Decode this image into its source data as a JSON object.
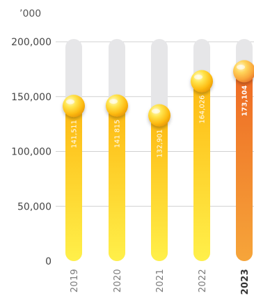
{
  "chart_data": {
    "type": "bar",
    "unit_label": "’000",
    "categories": [
      "2019",
      "2020",
      "2021",
      "2022",
      "2023"
    ],
    "values": [
      141511,
      141815,
      132901,
      164026,
      173104
    ],
    "value_labels": [
      "141,511",
      "141 815",
      "132,901",
      "164,026",
      "173,104"
    ],
    "highlight_category": "2023",
    "ylim": [
      0,
      200000
    ],
    "yticks": [
      0,
      50000,
      100000,
      150000,
      200000
    ],
    "ytick_labels": [
      "0",
      "50,000",
      "100,000",
      "150,000",
      "200,000"
    ],
    "grid": true,
    "colors": {
      "bar_track": "#e6e6e8",
      "bar_top": "#fdb913",
      "bar_bottom": "#fff04a",
      "highlight_top": "#ee6a24",
      "highlight_bottom": "#f6a53a",
      "ball": "#ffc91a",
      "gridline": "#d0d0d0"
    }
  }
}
